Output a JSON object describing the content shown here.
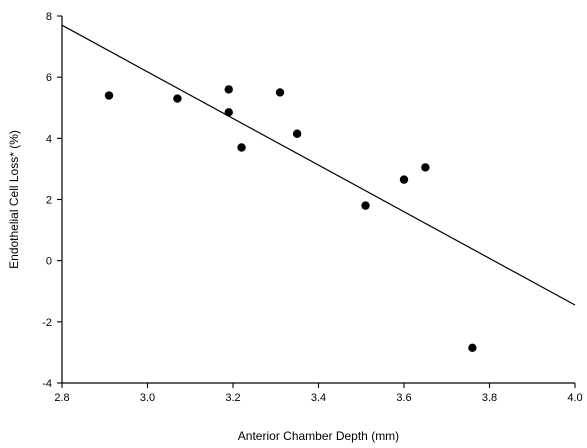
{
  "chart_data": {
    "type": "scatter",
    "title": "",
    "xlabel": "Anterior Chamber Depth (mm)",
    "ylabel": "Endothelial Cell Loss* (%)",
    "xlim": [
      2.8,
      4.0
    ],
    "ylim": [
      -4,
      8
    ],
    "x_ticks": [
      2.8,
      3.0,
      3.2,
      3.4,
      3.6,
      3.8,
      4.0
    ],
    "x_tick_labels": [
      "2.8",
      "3.0",
      "3.2",
      "3.4",
      "3.6",
      "3.8",
      "4.0"
    ],
    "y_ticks": [
      -4,
      -2,
      0,
      2,
      4,
      6,
      8
    ],
    "y_tick_labels": [
      "-4",
      "-2",
      "0",
      "2",
      "4",
      "6",
      "8"
    ],
    "grid": false,
    "legend": "none",
    "points": [
      {
        "x": 2.91,
        "y": 5.4
      },
      {
        "x": 3.07,
        "y": 5.3
      },
      {
        "x": 3.19,
        "y": 5.6
      },
      {
        "x": 3.19,
        "y": 4.85
      },
      {
        "x": 3.22,
        "y": 3.7
      },
      {
        "x": 3.31,
        "y": 5.5
      },
      {
        "x": 3.35,
        "y": 4.15
      },
      {
        "x": 3.51,
        "y": 1.8
      },
      {
        "x": 3.6,
        "y": 2.65
      },
      {
        "x": 3.65,
        "y": 3.05
      },
      {
        "x": 3.76,
        "y": -2.85
      }
    ],
    "trendline": {
      "x": [
        2.8,
        4.0
      ],
      "y": [
        7.7,
        -1.45
      ]
    },
    "colors": {
      "marks": "#000000",
      "background": "#ffffff"
    }
  }
}
